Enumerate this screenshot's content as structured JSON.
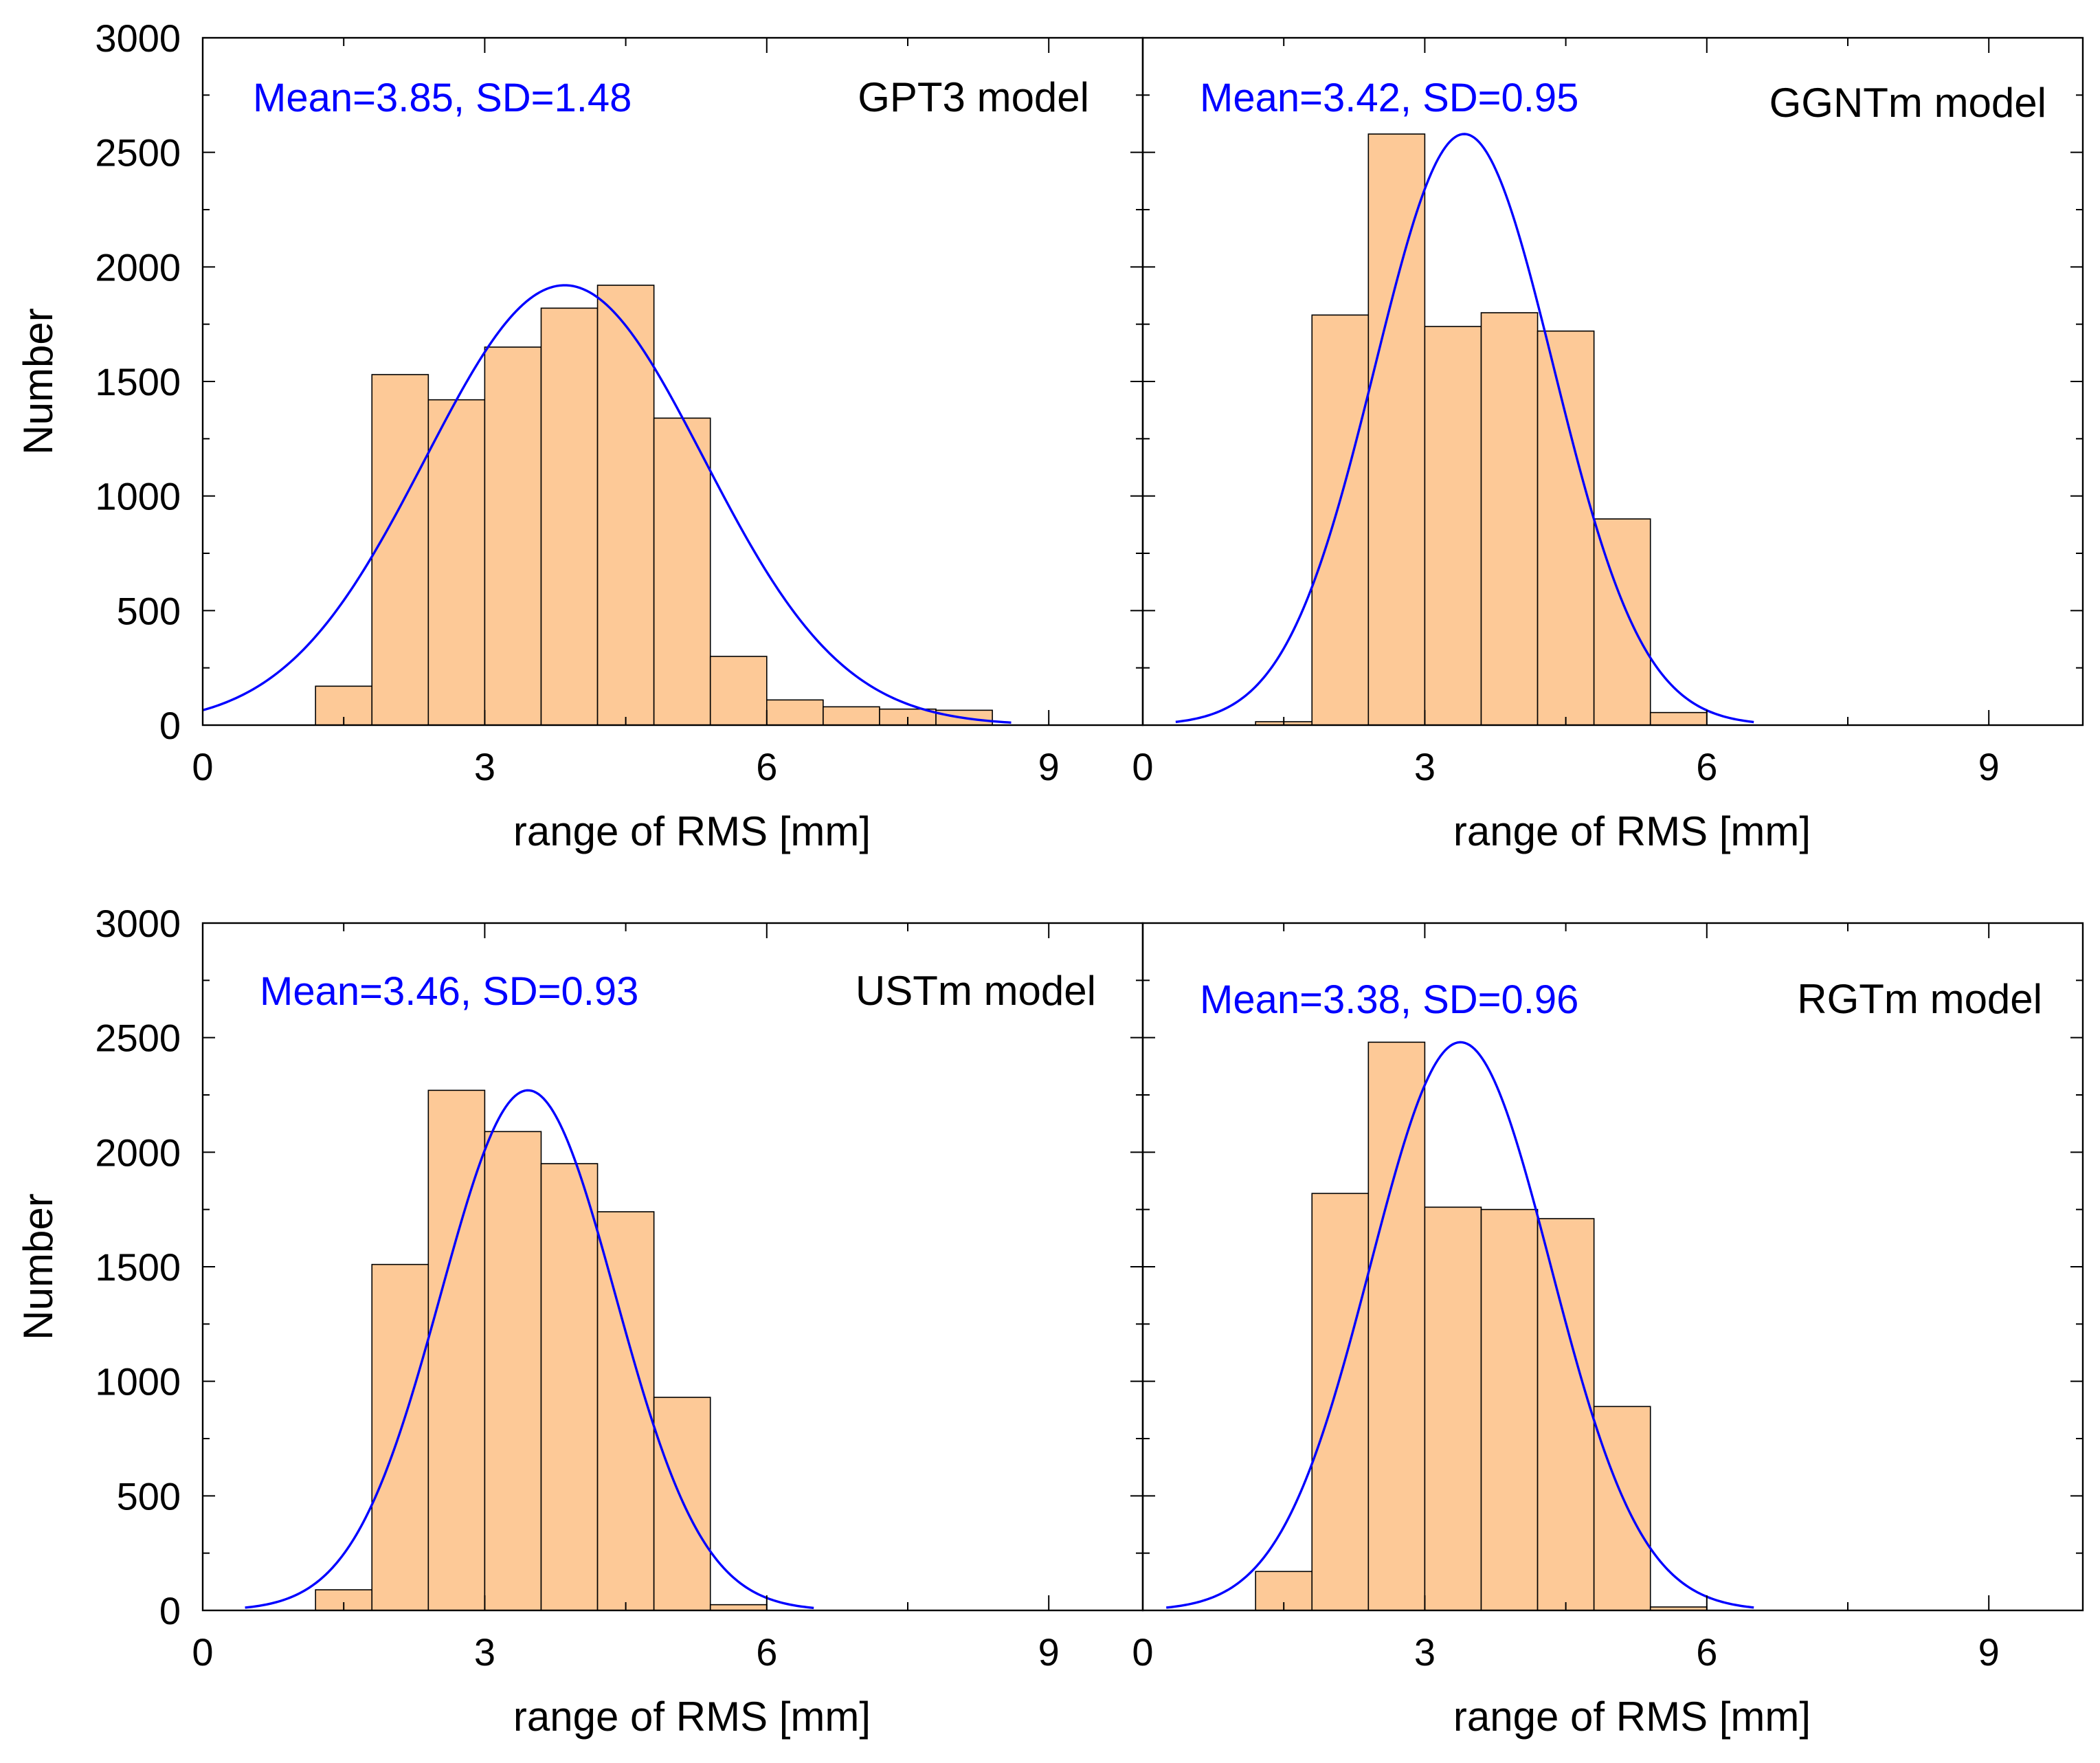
{
  "colors": {
    "bar_fill": "#FDC997",
    "bar_stroke": "#000000",
    "curve": "#0000FF",
    "stats_text": "#0000FF",
    "axis": "#000000"
  },
  "chart_data": [
    {
      "type": "bar",
      "subtype": "histogram-with-normal-fit",
      "model_label": "GPT3 model",
      "stats_label": "Mean=3.85, SD=1.48",
      "mean": 3.85,
      "sd": 1.48,
      "curve_peak": 1920,
      "curve_range": [
        0,
        8.6
      ],
      "bin_width": 0.6,
      "bin_lefts": [
        1.2,
        1.8,
        2.4,
        3.0,
        3.6,
        4.2,
        4.8,
        5.4,
        6.0,
        6.6,
        7.2,
        7.8
      ],
      "values": [
        170,
        1530,
        1420,
        1650,
        1820,
        1920,
        1340,
        300,
        110,
        80,
        70,
        65
      ],
      "xlabel": "range of RMS [mm]",
      "ylabel": "Number",
      "xlim": [
        0,
        10
      ],
      "ylim": [
        0,
        3000
      ],
      "xticks": [
        0,
        3,
        6,
        9
      ],
      "yticks": [
        0,
        500,
        1000,
        1500,
        2000,
        2500,
        3000
      ],
      "show_y_tick_labels": true,
      "show_ylabel": true
    },
    {
      "type": "bar",
      "subtype": "histogram-with-normal-fit",
      "model_label": "GGNTm model",
      "stats_label": "Mean=3.42, SD=0.95",
      "mean": 3.42,
      "sd": 0.95,
      "curve_peak": 2580,
      "curve_range": [
        0.35,
        6.5
      ],
      "bin_width": 0.6,
      "bin_lefts": [
        1.2,
        1.8,
        2.4,
        3.0,
        3.6,
        4.2,
        4.8,
        5.4
      ],
      "values": [
        15,
        1790,
        2580,
        1740,
        1800,
        1720,
        900,
        55
      ],
      "xlabel": "range of RMS [mm]",
      "ylabel": "",
      "xlim": [
        0,
        10
      ],
      "ylim": [
        0,
        3000
      ],
      "xticks": [
        0,
        3,
        6,
        9
      ],
      "yticks": [
        0,
        500,
        1000,
        1500,
        2000,
        2500,
        3000
      ],
      "show_y_tick_labels": false,
      "show_ylabel": false
    },
    {
      "type": "bar",
      "subtype": "histogram-with-normal-fit",
      "model_label": "USTm model",
      "stats_label": "Mean=3.46, SD=0.93",
      "mean": 3.46,
      "sd": 0.93,
      "curve_peak": 2270,
      "curve_range": [
        0.45,
        6.5
      ],
      "bin_width": 0.6,
      "bin_lefts": [
        1.2,
        1.8,
        2.4,
        3.0,
        3.6,
        4.2,
        4.8,
        5.4
      ],
      "values": [
        90,
        1510,
        2270,
        2090,
        1950,
        1740,
        930,
        25
      ],
      "xlabel": "range of RMS [mm]",
      "ylabel": "Number",
      "xlim": [
        0,
        10
      ],
      "ylim": [
        0,
        3000
      ],
      "xticks": [
        0,
        3,
        6,
        9
      ],
      "yticks": [
        0,
        500,
        1000,
        1500,
        2000,
        2500,
        3000
      ],
      "show_y_tick_labels": true,
      "show_ylabel": true
    },
    {
      "type": "bar",
      "subtype": "histogram-with-normal-fit",
      "model_label": "RGTm model",
      "stats_label": "Mean=3.38, SD=0.96",
      "mean": 3.38,
      "sd": 0.96,
      "curve_peak": 2480,
      "curve_range": [
        0.25,
        6.5
      ],
      "bin_width": 0.6,
      "bin_lefts": [
        1.2,
        1.8,
        2.4,
        3.0,
        3.6,
        4.2,
        4.8,
        5.4
      ],
      "values": [
        170,
        1820,
        2480,
        1760,
        1750,
        1710,
        890,
        15
      ],
      "xlabel": "range of RMS [mm]",
      "ylabel": "",
      "xlim": [
        0,
        10
      ],
      "ylim": [
        0,
        3000
      ],
      "xticks": [
        0,
        3,
        6,
        9
      ],
      "yticks": [
        0,
        500,
        1000,
        1500,
        2000,
        2500,
        3000
      ],
      "show_y_tick_labels": false,
      "show_ylabel": false
    }
  ]
}
